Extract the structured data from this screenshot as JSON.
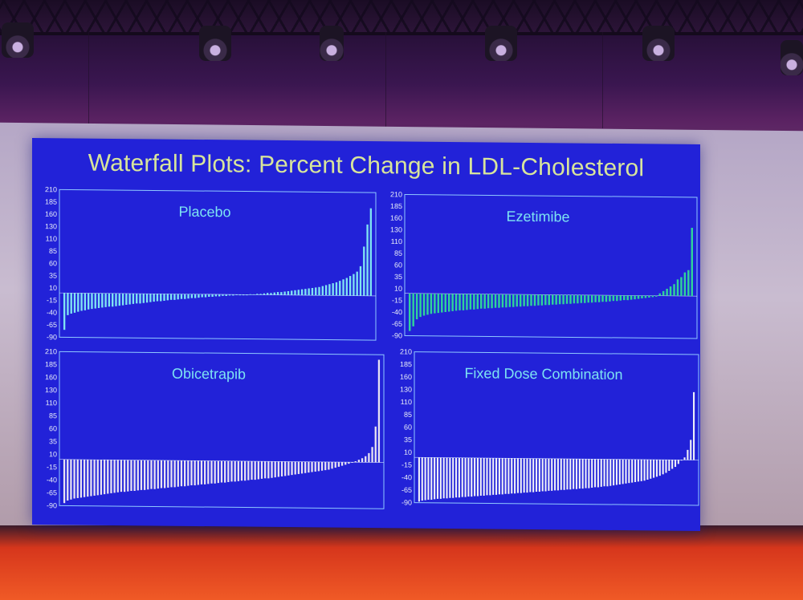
{
  "slide": {
    "title": "Waterfall Plots: Percent Change in LDL-Cholesterol",
    "background_color": "#2222d8",
    "title_color": "#d8e59c"
  },
  "chart_data": [
    {
      "type": "bar",
      "title": "Placebo",
      "xlabel": "",
      "ylabel": "",
      "ylim": [
        -90,
        210
      ],
      "yticks": [
        210,
        185,
        160,
        130,
        110,
        85,
        60,
        35,
        10,
        -15,
        -40,
        -65,
        -90
      ],
      "bar_color": "#7fe3f3",
      "n_bars": 90,
      "values": [
        -75,
        -45,
        -42,
        -40,
        -38,
        -36,
        -35,
        -33,
        -32,
        -31,
        -30,
        -29,
        -28,
        -27,
        -27,
        -26,
        -25,
        -24,
        -23,
        -22,
        -21,
        -20,
        -20,
        -19,
        -18,
        -17,
        -16,
        -15,
        -15,
        -14,
        -13,
        -12,
        -12,
        -11,
        -10,
        -10,
        -9,
        -8,
        -8,
        -7,
        -6,
        -6,
        -5,
        -5,
        -4,
        -4,
        -3,
        -3,
        -2,
        -2,
        -1,
        -1,
        0,
        0,
        1,
        1,
        2,
        2,
        3,
        4,
        4,
        5,
        6,
        6,
        7,
        8,
        9,
        10,
        11,
        12,
        13,
        14,
        15,
        16,
        17,
        19,
        21,
        23,
        25,
        27,
        30,
        33,
        36,
        40,
        44,
        49,
        60,
        100,
        145,
        178
      ]
    },
    {
      "type": "bar",
      "title": "Ezetimibe",
      "xlabel": "",
      "ylabel": "",
      "ylim": [
        -90,
        210
      ],
      "yticks": [
        210,
        185,
        160,
        130,
        110,
        85,
        60,
        35,
        10,
        -15,
        -40,
        -65,
        -90
      ],
      "bar_color": "#2fd39b",
      "n_bars": 80,
      "values": [
        -80,
        -70,
        -55,
        -50,
        -47,
        -45,
        -43,
        -42,
        -41,
        -40,
        -39,
        -38,
        -37,
        -36,
        -35,
        -35,
        -34,
        -33,
        -33,
        -32,
        -31,
        -31,
        -30,
        -30,
        -29,
        -29,
        -28,
        -28,
        -27,
        -27,
        -26,
        -26,
        -25,
        -25,
        -24,
        -24,
        -23,
        -23,
        -22,
        -22,
        -21,
        -21,
        -20,
        -20,
        -19,
        -19,
        -18,
        -18,
        -17,
        -17,
        -16,
        -16,
        -15,
        -15,
        -14,
        -14,
        -13,
        -12,
        -12,
        -11,
        -10,
        -10,
        -9,
        -8,
        -7,
        -6,
        -5,
        -4,
        -3,
        -2,
        5,
        10,
        15,
        20,
        25,
        35,
        40,
        50,
        55,
        145
      ]
    },
    {
      "type": "bar",
      "title": "Obicetrapib",
      "xlabel": "",
      "ylabel": "",
      "ylim": [
        -90,
        210
      ],
      "yticks": [
        210,
        185,
        160,
        130,
        110,
        85,
        60,
        35,
        10,
        -15,
        -40,
        -65,
        -90
      ],
      "bar_color": "#e7e3f2",
      "n_bars": 95,
      "values": [
        -85,
        -80,
        -78,
        -76,
        -75,
        -74,
        -73,
        -72,
        -71,
        -70,
        -69,
        -68,
        -67,
        -66,
        -65,
        -64,
        -63,
        -62,
        -62,
        -61,
        -60,
        -60,
        -59,
        -58,
        -58,
        -57,
        -56,
        -56,
        -55,
        -54,
        -54,
        -53,
        -52,
        -52,
        -51,
        -50,
        -50,
        -49,
        -48,
        -48,
        -47,
        -46,
        -46,
        -45,
        -44,
        -44,
        -43,
        -42,
        -42,
        -41,
        -40,
        -40,
        -39,
        -38,
        -38,
        -37,
        -36,
        -36,
        -35,
        -34,
        -33,
        -33,
        -32,
        -31,
        -30,
        -29,
        -28,
        -27,
        -26,
        -25,
        -24,
        -23,
        -22,
        -21,
        -20,
        -19,
        -18,
        -17,
        -16,
        -15,
        -13,
        -11,
        -9,
        -7,
        -5,
        -3,
        -1,
        2,
        5,
        8,
        12,
        18,
        30,
        70,
        200
      ]
    },
    {
      "type": "bar",
      "title": "Fixed Dose Combination",
      "xlabel": "",
      "ylabel": "",
      "ylim": [
        -90,
        210
      ],
      "yticks": [
        210,
        185,
        160,
        130,
        110,
        85,
        60,
        35,
        10,
        -15,
        -40,
        -65,
        -90
      ],
      "bar_color": "#eef0f8",
      "n_bars": 90,
      "values": [
        -88,
        -86,
        -85,
        -84,
        -84,
        -83,
        -82,
        -82,
        -81,
        -81,
        -80,
        -80,
        -79,
        -79,
        -78,
        -78,
        -77,
        -77,
        -76,
        -76,
        -75,
        -75,
        -74,
        -74,
        -73,
        -73,
        -72,
        -72,
        -71,
        -71,
        -70,
        -70,
        -69,
        -69,
        -68,
        -68,
        -67,
        -67,
        -66,
        -66,
        -65,
        -65,
        -64,
        -64,
        -63,
        -63,
        -62,
        -62,
        -61,
        -61,
        -60,
        -60,
        -59,
        -59,
        -58,
        -58,
        -57,
        -56,
        -56,
        -55,
        -54,
        -54,
        -53,
        -52,
        -51,
        -50,
        -49,
        -48,
        -47,
        -46,
        -45,
        -44,
        -43,
        -42,
        -40,
        -38,
        -36,
        -34,
        -32,
        -29,
        -26,
        -22,
        -18,
        -14,
        -8,
        0,
        5,
        20,
        40,
        135
      ]
    }
  ]
}
